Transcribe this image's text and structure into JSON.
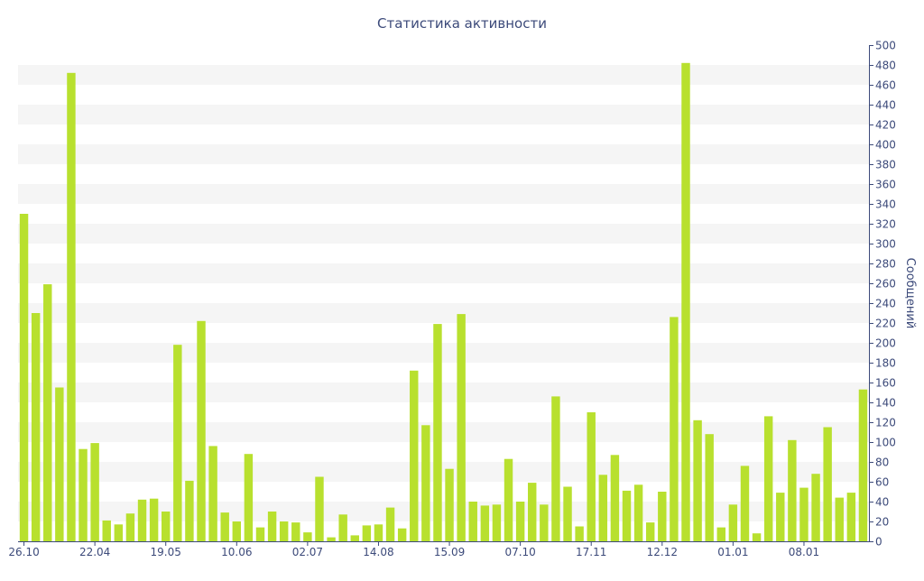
{
  "chart_data": {
    "type": "bar",
    "title": "Статистика активности",
    "ylabel": "Сообщений",
    "xlabel": "",
    "ylim": [
      0,
      500
    ],
    "y_ticks": [
      0,
      20,
      40,
      60,
      80,
      100,
      120,
      140,
      160,
      180,
      200,
      220,
      240,
      260,
      280,
      300,
      320,
      340,
      360,
      380,
      400,
      420,
      440,
      460,
      480,
      500
    ],
    "y_axis_side": "right",
    "grid": "alternating horizontal bands",
    "x_tick_labels": [
      {
        "index": 0,
        "label": "26.10"
      },
      {
        "index": 6,
        "label": "22.04"
      },
      {
        "index": 12,
        "label": "19.05"
      },
      {
        "index": 18,
        "label": "10.06"
      },
      {
        "index": 24,
        "label": "02.07"
      },
      {
        "index": 30,
        "label": "14.08"
      },
      {
        "index": 36,
        "label": "15.09"
      },
      {
        "index": 42,
        "label": "07.10"
      },
      {
        "index": 48,
        "label": "17.11"
      },
      {
        "index": 54,
        "label": "12.12"
      },
      {
        "index": 60,
        "label": "01.01"
      },
      {
        "index": 66,
        "label": "08.01"
      }
    ],
    "values": [
      330,
      230,
      259,
      155,
      472,
      93,
      99,
      21,
      17,
      28,
      42,
      43,
      30,
      198,
      61,
      222,
      96,
      29,
      20,
      88,
      14,
      30,
      20,
      19,
      9,
      65,
      4,
      27,
      6,
      16,
      17,
      34,
      13,
      172,
      117,
      219,
      73,
      229,
      40,
      36,
      37,
      83,
      40,
      59,
      37,
      146,
      55,
      15,
      130,
      67,
      87,
      51,
      57,
      19,
      50,
      226,
      482,
      122,
      108,
      14,
      37,
      76,
      8,
      126,
      49,
      102,
      54,
      68,
      115,
      44,
      49,
      153
    ],
    "bar_color": "#b8e02e"
  },
  "colors": {
    "title": "#3c4a7a",
    "axis": "#3c4a7a",
    "band": "#f5f5f5"
  }
}
